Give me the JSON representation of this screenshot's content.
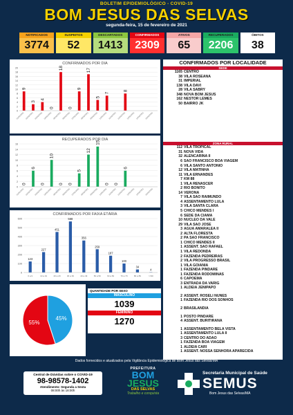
{
  "header": {
    "subtitle": "BOLETIM EPIDEMIOLÓGICO - COVID-19",
    "title": "BOM JESUS DAS SELVAS",
    "date": "segunda-feira, 15 de fevereiro de 2021"
  },
  "stats": [
    {
      "label": "NOTIFICADOS",
      "value": "3774",
      "label_bg": "#f7a21b",
      "value_bg": "#f9c04a"
    },
    {
      "label": "SUSPEITOS",
      "value": "52",
      "label_bg": "#f5d000",
      "value_bg": "#ffe766"
    },
    {
      "label": "DESCARTADOS",
      "value": "1413",
      "label_bg": "#8cc63f",
      "value_bg": "#b5dc7d"
    },
    {
      "label": "CONFIRMADOS",
      "value": "2309",
      "label_bg": "#e30613",
      "value_bg": "#ff3030"
    },
    {
      "label": "ATIVOS",
      "value": "65",
      "label_bg": "#f4a6a6",
      "value_bg": "#f9cccc"
    },
    {
      "label": "RECUPERADOS",
      "value": "2206",
      "label_bg": "#1aab5f",
      "value_bg": "#2cc36b"
    },
    {
      "label": "ÓBITOS",
      "value": "38",
      "label_bg": "#ffffff",
      "value_bg": "#ffffff"
    }
  ],
  "chart_data": [
    {
      "type": "bar",
      "title": "CONFIRMADOS POR DIA",
      "categories": [
        "01/02/2021",
        "02/02/2021",
        "03/02/2021",
        "04/02/2021",
        "05/02/2021",
        "06/02/2021",
        "07/02/2021",
        "08/02/2021",
        "09/02/2021",
        "10/02/2021",
        "11/02/2021",
        "12/02/2021",
        "13/02/2021",
        "14/02/2021",
        "15/02/2021"
      ],
      "values": [
        9,
        3,
        4,
        0,
        18,
        0,
        9,
        17,
        5,
        7,
        0,
        8,
        0,
        0,
        0
      ],
      "show_labels": [
        true,
        true,
        true,
        true,
        true,
        true,
        true,
        true,
        true,
        true,
        false,
        true,
        false,
        false,
        false
      ],
      "ylim": [
        0,
        20
      ],
      "yticks": [
        0,
        2,
        4,
        6,
        8,
        10,
        12,
        14,
        16,
        18,
        20
      ],
      "color": "#e30613"
    },
    {
      "type": "bar",
      "title": "RECUPERADOS POR DIA",
      "categories": [
        "01/02/2021",
        "02/02/2021",
        "03/02/2021",
        "04/02/2021",
        "05/02/2021",
        "06/02/2021",
        "07/02/2021",
        "08/02/2021",
        "09/02/2021",
        "10/02/2021",
        "11/02/2021",
        "12/02/2021",
        "13/02/2021",
        "14/02/2021",
        "15/02/2021"
      ],
      "values": [
        0,
        6,
        0,
        10,
        0,
        0,
        5,
        12,
        15,
        0,
        0,
        6,
        0,
        0,
        0
      ],
      "show_labels": [
        true,
        true,
        true,
        true,
        true,
        true,
        true,
        true,
        true,
        true,
        true,
        true,
        false,
        false,
        false
      ],
      "ylim": [
        0,
        16
      ],
      "yticks": [
        0,
        2,
        4,
        6,
        8,
        10,
        12,
        14,
        16
      ],
      "color": "#1aab5f"
    },
    {
      "type": "bar",
      "title": "CONFIRMADOS POR FAIXA ETÁRIA",
      "categories": [
        "0 a 9",
        "10 a 19",
        "20 a 29",
        "30 a 39",
        "40 a 49",
        "50 a 59",
        "60 a 69",
        "70 a 79",
        "80 a 89",
        ">=90"
      ],
      "values": [
        123,
        227,
        451,
        568,
        356,
        259,
        187,
        100,
        34,
        4
      ],
      "ylim": [
        0,
        600
      ],
      "yticks": [
        0,
        100,
        200,
        300,
        400,
        500,
        600
      ],
      "color": "#2a5ca8"
    },
    {
      "type": "pie",
      "title": "QUANTIDADE POR SEXO",
      "slices": [
        {
          "name": "MASCULINO",
          "value": 45,
          "label": "45%",
          "color": "#1fa0e0"
        },
        {
          "name": "FEMININO",
          "value": 55,
          "label": "55%",
          "color": "#e30613"
        }
      ]
    }
  ],
  "sex": {
    "title": "QUANTIDADE POR SEXO",
    "male_label": "MASCULINO",
    "male_value": "1039",
    "female_label": "FEMININO",
    "female_value": "1270"
  },
  "locality": {
    "title": "CONFIRMADOS POR LOCALIDADE",
    "sede_label": "SEDE",
    "rural_label": "ZONA RURAL",
    "sede": [
      [
        "1165",
        "CENTRO"
      ],
      [
        "38",
        "VILA ROSEANA"
      ],
      [
        "31",
        "IMPERIAL"
      ],
      [
        "138",
        "VILA DAVI"
      ],
      [
        "28",
        "VILA SABRY"
      ],
      [
        "348",
        "NOVA BOM JESUS"
      ],
      [
        "162",
        "NESTOR LEMES"
      ],
      [
        "50",
        "BAIRRO JK"
      ]
    ],
    "rural": [
      [
        "112",
        "VILA TROPICAL"
      ],
      [
        "31",
        "NOVA VIDA"
      ],
      [
        "32",
        "ALENCARINA II"
      ],
      [
        "6",
        "SÃO FRANCISCO BOA VIAGEM"
      ],
      [
        "6",
        "VILA SANTO ANTONIO"
      ],
      [
        "12",
        "VILA MATINHA"
      ],
      [
        "11",
        "VILA ERNANDES"
      ],
      [
        "7",
        "KM 88"
      ],
      [
        "1",
        "VILA RENASCER"
      ],
      [
        "2",
        "RIO BONITO"
      ],
      [
        "14",
        "VERONA"
      ],
      [
        "7",
        "VILA SÃO RAIMUNDO"
      ],
      [
        "4",
        "ASSENTAMENTO LULA"
      ],
      [
        "3",
        "VILA SANTA CLARA"
      ],
      [
        "5",
        "CHICO MENDES I"
      ],
      [
        "6",
        "SEDE DA CIAMA"
      ],
      [
        "10",
        "NUCLEO DA VALE"
      ],
      [
        "29",
        "VILA SÃO JOSÉ"
      ],
      [
        "3",
        "AGUA AMARALEA II"
      ],
      [
        "2",
        "ALTA FLORESTA"
      ],
      [
        "2",
        "PA SÃO FRANCISCO"
      ],
      [
        "1",
        "CHICO MENDES II"
      ],
      [
        "1",
        "ASSENT. SÃO RAFAEL"
      ],
      [
        "1",
        "VILA REDONDA"
      ],
      [
        "2",
        "FAZENDA PEDREIRAS"
      ],
      [
        "2",
        "VILA PROGRESSO BRASIL"
      ],
      [
        "1",
        "VILA GOIANIA"
      ],
      [
        "1",
        "FAZENDA PINDARÉ"
      ],
      [
        "1",
        "FAZENDA RODOMINAS"
      ],
      [
        "6",
        "CAPOEMA"
      ],
      [
        "3",
        "ENTRADA DA VARIG"
      ],
      [
        "1",
        "ALDEIA JENIPAPO"
      ]
    ],
    "rural2": [
      [
        "2",
        "ASSENT. ROSELI NUNES"
      ],
      [
        "1",
        "FAZENDA RIO DOS SONHOS"
      ]
    ],
    "rural3": [
      [
        "2",
        "BRASILANDIA"
      ]
    ],
    "rural4": [
      [
        "1",
        "POSTO PINDARÉ"
      ],
      [
        "4",
        "ASSENT. BURITIRANA"
      ]
    ],
    "rural5": [
      [
        "1",
        "ASSENTAMENTO BELA VISTA"
      ],
      [
        "1",
        "ASSENTAMENTO LULA II"
      ],
      [
        "3",
        "CENTRO DO ADÃO"
      ],
      [
        "1",
        "FAZENDA BOA VIAGEM"
      ],
      [
        "1",
        "ALDEIA CARÍ"
      ],
      [
        "1",
        "ASSENT. NOSSA SENHORA APARECIDA"
      ]
    ]
  },
  "footer": {
    "note": "Dados fornecidos e atualizados pela Vigilância Epidemiológica de Bom Jesus das Selvas/MA",
    "contact_title": "Central de Dúvidas sobre o COVID-19",
    "contact_phone": "98-98578-1402",
    "contact_hours_label": "Atendimento: Segunda a Sexta",
    "contact_hours": "08:00h às 18:00h",
    "pref_top": "PREFEITURA",
    "pref_name1": "BOM",
    "pref_name2": "JESUS",
    "pref_name3": "DAS SELVAS",
    "pref_slogan": "Trabalho e conquista",
    "semus_line1": "Secretaria Municipal de Saúde",
    "semus_name": "SEMUS",
    "semus_line2": "Bom Jesus das Selvas/MA"
  }
}
